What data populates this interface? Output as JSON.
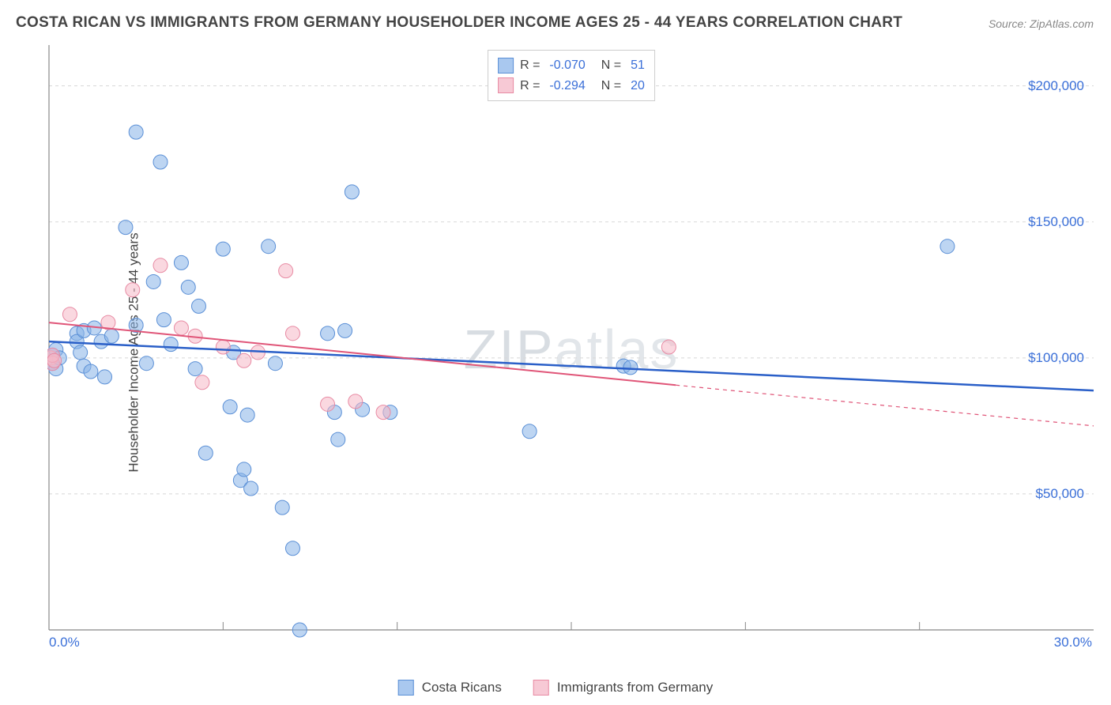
{
  "title": "COSTA RICAN VS IMMIGRANTS FROM GERMANY HOUSEHOLDER INCOME AGES 25 - 44 YEARS CORRELATION CHART",
  "source": "Source: ZipAtlas.com",
  "y_axis_label": "Householder Income Ages 25 - 44 years",
  "watermark": {
    "part1": "ZIP",
    "part2": "atlas"
  },
  "chart": {
    "type": "scatter",
    "background_color": "#ffffff",
    "grid_color": "#d8d8d8",
    "grid_dash": "4,4",
    "axis_color": "#888888",
    "xlim": [
      0,
      30
    ],
    "ylim": [
      0,
      215000
    ],
    "x_ticks": [
      0,
      30
    ],
    "x_tick_labels": [
      "0.0%",
      "30.0%"
    ],
    "x_minor_ticks": [
      5,
      10,
      15,
      20,
      25
    ],
    "y_ticks": [
      50000,
      100000,
      150000,
      200000
    ],
    "y_tick_labels": [
      "$50,000",
      "$100,000",
      "$150,000",
      "$200,000"
    ],
    "marker_radius": 9,
    "marker_opacity": 0.55,
    "series": [
      {
        "name": "Costa Ricans",
        "fill": "#87b3e8",
        "stroke": "#5a8fd6",
        "trend_color": "#2a5fc8",
        "trend_width": 2.5,
        "R": "-0.070",
        "N": "51",
        "trend": {
          "x1": 0,
          "y1": 106000,
          "x2": 30,
          "y2": 88000
        },
        "points": [
          [
            0.1,
            98000
          ],
          [
            0.1,
            101000
          ],
          [
            0.2,
            96000
          ],
          [
            0.2,
            103000
          ],
          [
            0.3,
            100000
          ],
          [
            0.8,
            109000
          ],
          [
            0.8,
            106000
          ],
          [
            0.9,
            102000
          ],
          [
            1.0,
            97000
          ],
          [
            1.0,
            110000
          ],
          [
            1.2,
            95000
          ],
          [
            1.3,
            111000
          ],
          [
            1.5,
            106000
          ],
          [
            1.6,
            93000
          ],
          [
            1.8,
            108000
          ],
          [
            2.2,
            148000
          ],
          [
            2.5,
            183000
          ],
          [
            2.5,
            112000
          ],
          [
            2.8,
            98000
          ],
          [
            3.0,
            128000
          ],
          [
            3.2,
            172000
          ],
          [
            3.3,
            114000
          ],
          [
            3.5,
            105000
          ],
          [
            3.8,
            135000
          ],
          [
            4.0,
            126000
          ],
          [
            4.2,
            96000
          ],
          [
            4.3,
            119000
          ],
          [
            4.5,
            65000
          ],
          [
            5.0,
            140000
          ],
          [
            5.2,
            82000
          ],
          [
            5.3,
            102000
          ],
          [
            5.5,
            55000
          ],
          [
            5.6,
            59000
          ],
          [
            5.7,
            79000
          ],
          [
            5.8,
            52000
          ],
          [
            6.3,
            141000
          ],
          [
            6.5,
            98000
          ],
          [
            6.7,
            45000
          ],
          [
            7.0,
            30000
          ],
          [
            7.2,
            0
          ],
          [
            8.0,
            109000
          ],
          [
            8.2,
            80000
          ],
          [
            8.3,
            70000
          ],
          [
            8.7,
            161000
          ],
          [
            9.0,
            81000
          ],
          [
            9.8,
            80000
          ],
          [
            13.8,
            73000
          ],
          [
            16.5,
            97000
          ],
          [
            16.7,
            96500
          ],
          [
            25.8,
            141000
          ],
          [
            8.5,
            110000
          ]
        ]
      },
      {
        "name": "Immigrants from Germany",
        "fill": "#f5b8c7",
        "stroke": "#e88aa3",
        "trend_color": "#e05578",
        "trend_width": 2,
        "R": "-0.294",
        "N": "20",
        "trend": {
          "x1": 0,
          "y1": 113000,
          "x2": 18,
          "y2": 90000
        },
        "trend_ext": {
          "x1": 18,
          "y1": 90000,
          "x2": 30,
          "y2": 75000
        },
        "points": [
          [
            0.05,
            100000
          ],
          [
            0.1,
            98000
          ],
          [
            0.1,
            101000
          ],
          [
            0.15,
            99000
          ],
          [
            0.6,
            116000
          ],
          [
            1.7,
            113000
          ],
          [
            2.4,
            125000
          ],
          [
            3.2,
            134000
          ],
          [
            3.8,
            111000
          ],
          [
            4.2,
            108000
          ],
          [
            4.4,
            91000
          ],
          [
            5.0,
            104000
          ],
          [
            5.6,
            99000
          ],
          [
            6.0,
            102000
          ],
          [
            6.8,
            132000
          ],
          [
            7.0,
            109000
          ],
          [
            8.0,
            83000
          ],
          [
            8.8,
            84000
          ],
          [
            9.6,
            80000
          ],
          [
            17.8,
            104000
          ]
        ]
      }
    ],
    "legend_top": [
      {
        "swatch_fill": "#a9c8ef",
        "swatch_stroke": "#5a8fd6",
        "R": "-0.070",
        "N": "51"
      },
      {
        "swatch_fill": "#f7c9d5",
        "swatch_stroke": "#e88aa3",
        "R": "-0.294",
        "N": "20"
      }
    ],
    "legend_bottom": [
      {
        "swatch_fill": "#a9c8ef",
        "swatch_stroke": "#5a8fd6",
        "label": "Costa Ricans"
      },
      {
        "swatch_fill": "#f7c9d5",
        "swatch_stroke": "#e88aa3",
        "label": "Immigrants from Germany"
      }
    ]
  }
}
